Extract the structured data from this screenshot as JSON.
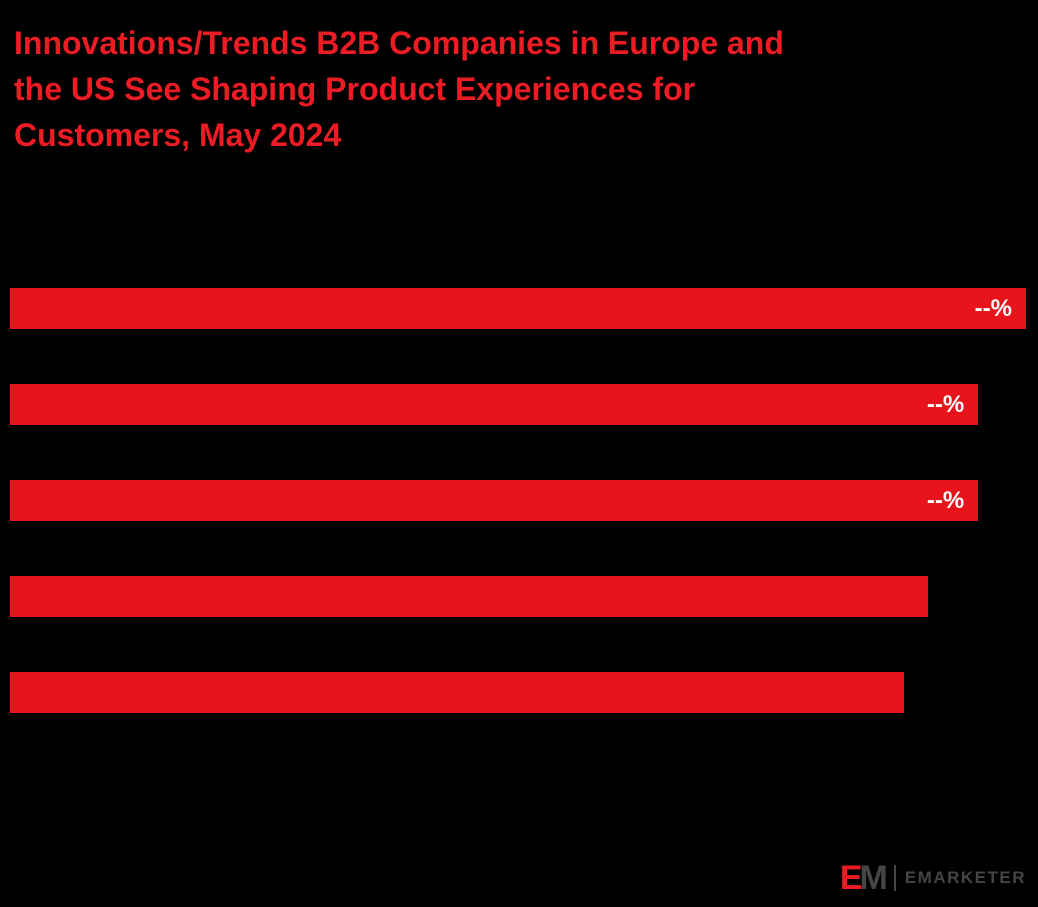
{
  "page": {
    "background": "#000000"
  },
  "title": {
    "lines": [
      "Innovations/Trends B2B Companies in Europe and",
      "the US See Shaping Product Experiences for",
      "Customers, May 2024"
    ],
    "color": "#ED1C24"
  },
  "chart_data": {
    "type": "bar",
    "orientation": "horizontal",
    "title": "Innovations/Trends B2B Companies in Europe and the US See Shaping Product Experiences for Customers, May 2024",
    "bar_color": "#E8131B",
    "value_label_color": "#FFFFFF",
    "bars": [
      {
        "label": "--%",
        "width_pct": 100
      },
      {
        "label": "--%",
        "width_pct": 95.3
      },
      {
        "label": "--%",
        "width_pct": 95.3
      },
      {
        "label": "",
        "width_pct": 90.4
      },
      {
        "label": "",
        "width_pct": 88.0
      }
    ],
    "legend": "off",
    "grid": "off"
  },
  "logo": {
    "monogram_e": "E",
    "monogram_m": "M",
    "wordmark": "EMARKETER",
    "wordmark_color": "#454547"
  }
}
